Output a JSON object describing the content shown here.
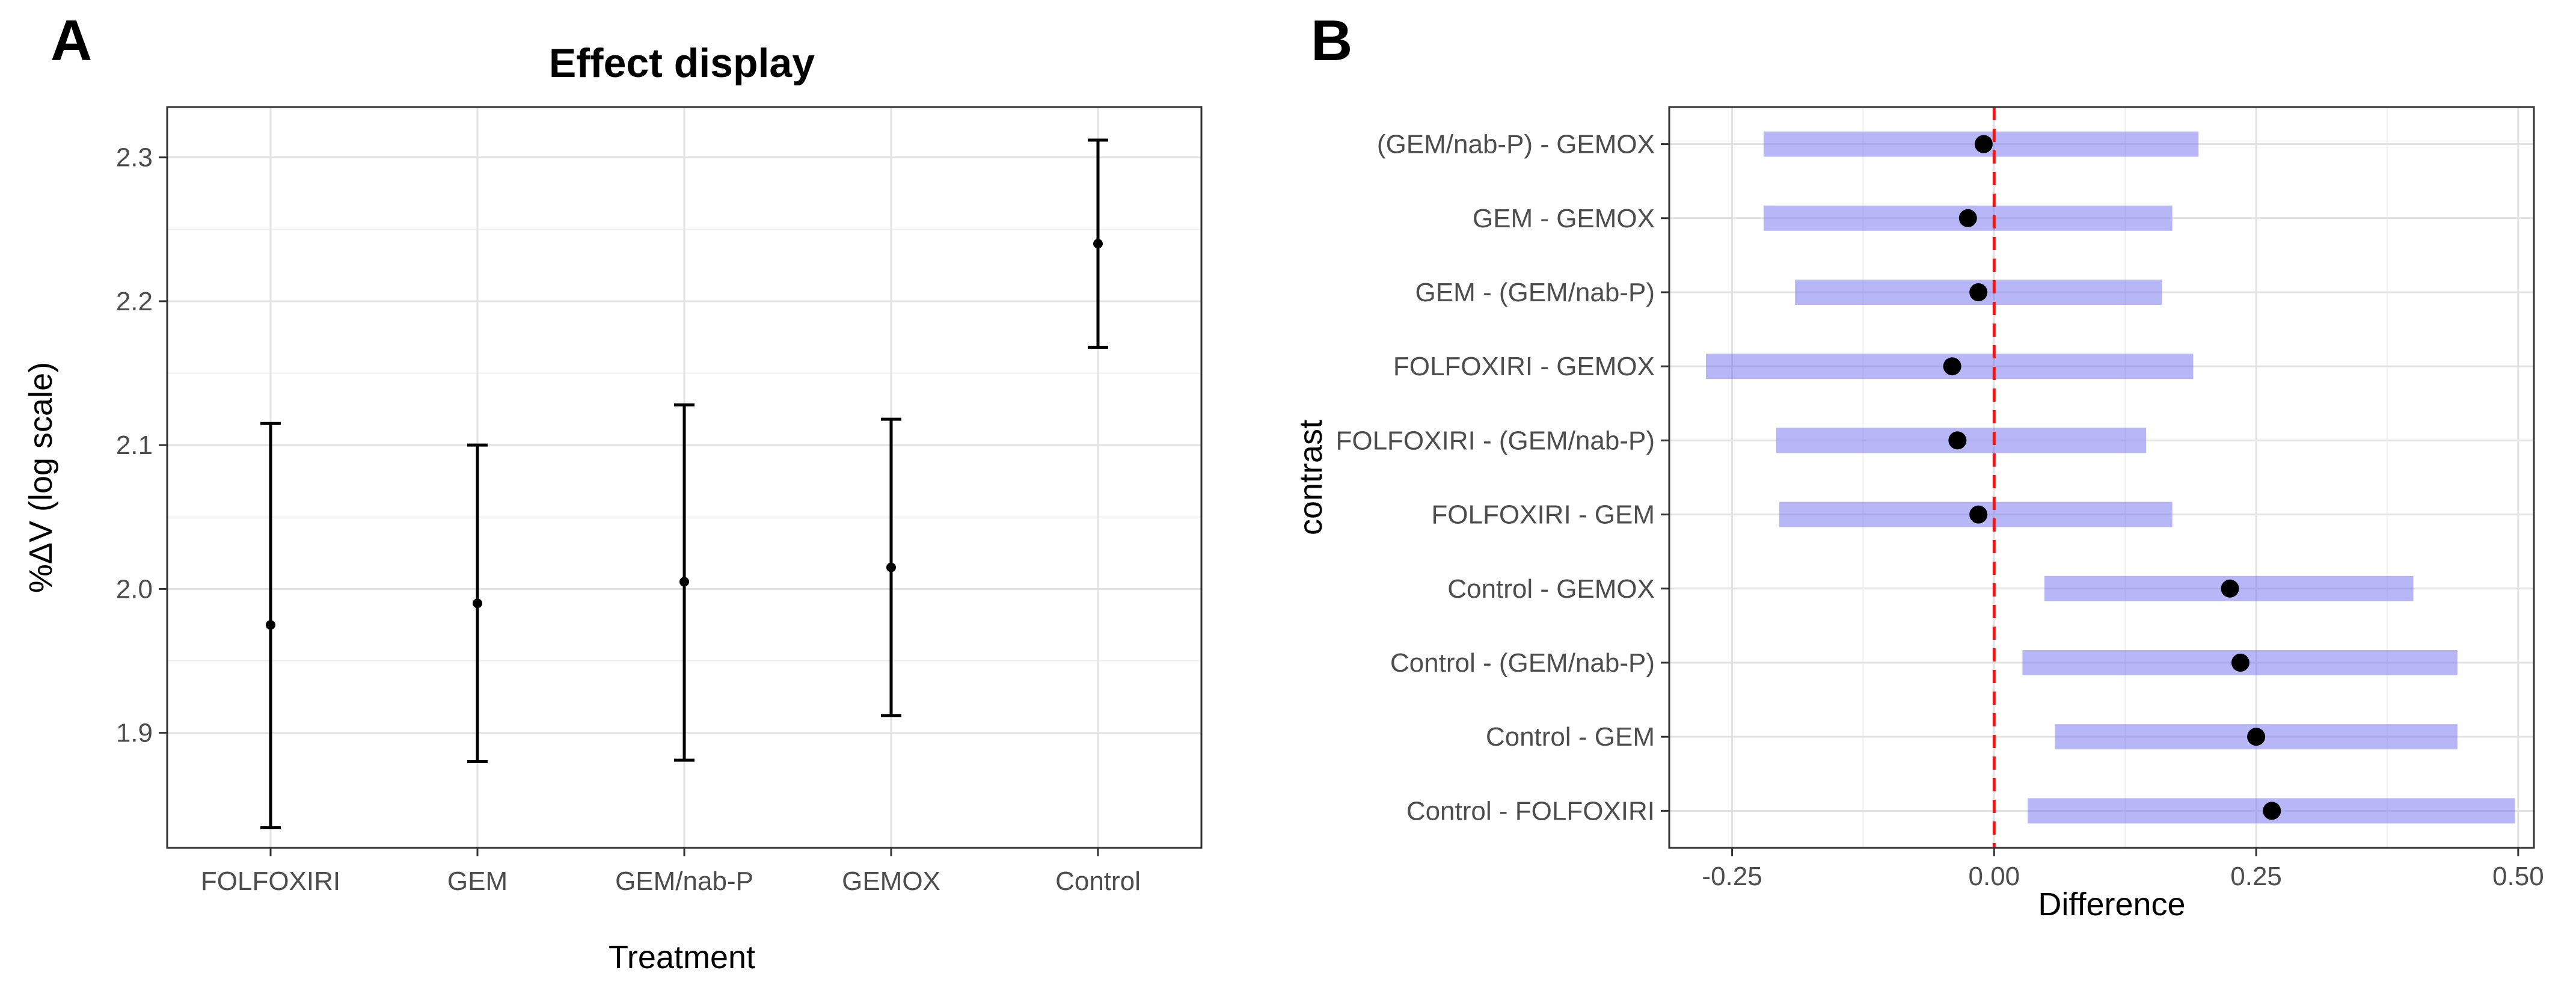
{
  "chart_data": [
    {
      "panel": "A",
      "type": "scatter",
      "subtype": "point-with-errorbars",
      "title": "Effect display",
      "xlabel": "Treatment",
      "ylabel": "%ΔV (log scale)",
      "categories": [
        "FOLFOXIRI",
        "GEM",
        "GEM/nab-P",
        "GEMOX",
        "Control"
      ],
      "estimates": [
        1.975,
        1.99,
        2.005,
        2.015,
        2.24
      ],
      "lower": [
        1.834,
        1.88,
        1.881,
        1.912,
        2.168
      ],
      "upper": [
        2.115,
        2.1,
        2.128,
        2.118,
        2.312
      ],
      "yticks": [
        1.9,
        2.0,
        2.1,
        2.2,
        2.3
      ],
      "ytick_labels": [
        "1.9",
        "2.0",
        "2.1",
        "2.2",
        "2.3"
      ],
      "ylim": [
        1.82,
        2.335
      ],
      "grid": true
    },
    {
      "panel": "B",
      "type": "scatter",
      "subtype": "interval-forest",
      "title": "",
      "xlabel": "Difference",
      "ylabel": "contrast",
      "contrasts": [
        "(GEM/nab-P) - GEMOX",
        "GEM - GEMOX",
        "GEM - (GEM/nab-P)",
        "FOLFOXIRI - GEMOX",
        "FOLFOXIRI - (GEM/nab-P)",
        "FOLFOXIRI - GEM",
        "Control - GEMOX",
        "Control - (GEM/nab-P)",
        "Control - GEM",
        "Control - FOLFOXIRI"
      ],
      "estimates": [
        -0.01,
        -0.025,
        -0.015,
        -0.04,
        -0.035,
        -0.015,
        0.225,
        0.235,
        0.25,
        0.265
      ],
      "lower": [
        -0.22,
        -0.22,
        -0.19,
        -0.275,
        -0.208,
        -0.205,
        0.048,
        0.027,
        0.058,
        0.032
      ],
      "upper": [
        0.195,
        0.17,
        0.16,
        0.19,
        0.145,
        0.17,
        0.4,
        0.442,
        0.442,
        0.497
      ],
      "xticks": [
        -0.25,
        0,
        0.25,
        0.5
      ],
      "xtick_labels": [
        "-0.25",
        "0.00",
        "0.25",
        "0.50"
      ],
      "xlim": [
        -0.31,
        0.515
      ],
      "reference_line": 0,
      "grid": true
    }
  ]
}
